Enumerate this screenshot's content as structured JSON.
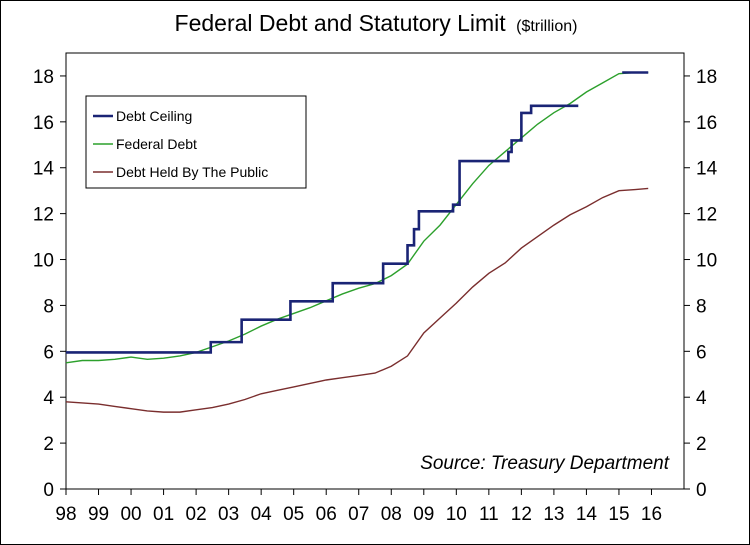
{
  "chart_data": {
    "type": "line",
    "title": "Federal Debt and Statutory Limit",
    "title_unit": "($trillion)",
    "xlabel": "",
    "ylabel": "",
    "x_tick_labels": [
      "98",
      "99",
      "00",
      "01",
      "02",
      "03",
      "04",
      "05",
      "06",
      "07",
      "08",
      "09",
      "10",
      "11",
      "12",
      "13",
      "14",
      "15",
      "16"
    ],
    "xlim": [
      1998,
      2017
    ],
    "ylim": [
      0,
      19
    ],
    "y_ticks": [
      0,
      2,
      4,
      6,
      8,
      10,
      12,
      14,
      16,
      18
    ],
    "y_tick_labels": [
      "0",
      "2",
      "4",
      "6",
      "8",
      "10",
      "12",
      "14",
      "16",
      "18"
    ],
    "grid": false,
    "legend_position": "top-left",
    "source_note": "Source: Treasury Department",
    "colors": {
      "debt_ceiling": "#1a2475",
      "federal_debt": "#2ca02c",
      "public_debt": "#7a2e2e"
    },
    "series": [
      {
        "name": "Debt Ceiling",
        "key": "debt_ceiling",
        "step": true,
        "x": [
          1998.0,
          2002.45,
          2003.4,
          2004.9,
          2006.2,
          2007.75,
          2008.5,
          2008.7,
          2008.85,
          2009.15,
          2009.9,
          2010.1,
          2011.6,
          2011.7,
          2012.0,
          2012.3,
          2013.75
        ],
        "values": [
          5.95,
          6.4,
          7.38,
          8.18,
          8.97,
          9.82,
          10.62,
          11.32,
          12.1,
          12.1,
          12.39,
          14.29,
          14.69,
          15.19,
          16.39,
          16.7,
          16.7
        ]
      },
      {
        "name": "",
        "key": "debt_ceiling_2015",
        "step": false,
        "x": [
          2015.1,
          2015.9
        ],
        "values": [
          18.15,
          18.15
        ]
      },
      {
        "name": "Federal Debt",
        "key": "federal_debt",
        "step": false,
        "x": [
          1998.0,
          1998.5,
          1999.0,
          1999.5,
          2000.0,
          2000.5,
          2001.0,
          2001.5,
          2002.0,
          2002.5,
          2003.0,
          2003.5,
          2004.0,
          2004.5,
          2005.0,
          2005.5,
          2006.0,
          2006.5,
          2007.0,
          2007.5,
          2008.0,
          2008.5,
          2009.0,
          2009.5,
          2010.0,
          2010.5,
          2011.0,
          2011.5,
          2012.0,
          2012.5,
          2013.0,
          2013.5,
          2014.0,
          2014.5,
          2015.0,
          2015.5,
          2015.9
        ],
        "values": [
          5.5,
          5.6,
          5.6,
          5.65,
          5.75,
          5.65,
          5.7,
          5.8,
          5.95,
          6.2,
          6.45,
          6.75,
          7.1,
          7.4,
          7.65,
          7.9,
          8.2,
          8.5,
          8.75,
          8.95,
          9.3,
          9.8,
          10.8,
          11.5,
          12.4,
          13.3,
          14.1,
          14.7,
          15.3,
          15.9,
          16.4,
          16.8,
          17.3,
          17.7,
          18.1,
          18.15,
          18.15
        ]
      },
      {
        "name": "Debt Held By The Public",
        "key": "public_debt",
        "step": false,
        "x": [
          1998.0,
          1998.5,
          1999.0,
          1999.5,
          2000.0,
          2000.5,
          2001.0,
          2001.5,
          2002.0,
          2002.5,
          2003.0,
          2003.5,
          2004.0,
          2004.5,
          2005.0,
          2005.5,
          2006.0,
          2006.5,
          2007.0,
          2007.5,
          2008.0,
          2008.5,
          2009.0,
          2009.5,
          2010.0,
          2010.5,
          2011.0,
          2011.5,
          2012.0,
          2012.5,
          2013.0,
          2013.5,
          2014.0,
          2014.5,
          2015.0,
          2015.5,
          2015.9
        ],
        "values": [
          3.8,
          3.75,
          3.7,
          3.6,
          3.5,
          3.4,
          3.35,
          3.35,
          3.45,
          3.55,
          3.7,
          3.9,
          4.15,
          4.3,
          4.45,
          4.6,
          4.75,
          4.85,
          4.95,
          5.05,
          5.35,
          5.8,
          6.8,
          7.45,
          8.1,
          8.8,
          9.4,
          9.85,
          10.5,
          11.0,
          11.5,
          11.95,
          12.3,
          12.7,
          13.0,
          13.05,
          13.1
        ]
      }
    ]
  }
}
